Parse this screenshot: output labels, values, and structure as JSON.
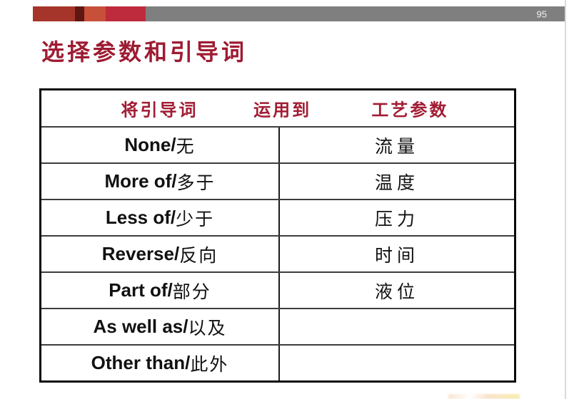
{
  "page": {
    "number": "95"
  },
  "title": "选择参数和引导词",
  "colors": {
    "bar_brick_red": "#a5352a",
    "bar_dark_maroon": "#5e1711",
    "bar_orange_red": "#c7503a",
    "bar_crimson": "#be2b3c",
    "bar_gray": "#7f7f7f",
    "title_crimson": "#9e1b32",
    "table_header_crimson": "#a11c33"
  },
  "table": {
    "headers": [
      "将引导词",
      "运用到",
      "工艺参数"
    ],
    "rows": [
      {
        "guideword_en": "None/",
        "guideword_zh": "无",
        "parameter": "流量"
      },
      {
        "guideword_en": "More of/",
        "guideword_zh": "多于",
        "parameter": "温度"
      },
      {
        "guideword_en": "Less of/",
        "guideword_zh": "少于",
        "parameter": "压力"
      },
      {
        "guideword_en": "Reverse/",
        "guideword_zh": "反向",
        "parameter": "时间"
      },
      {
        "guideword_en": "Part of/",
        "guideword_zh": "部分",
        "parameter": "液位"
      },
      {
        "guideword_en": "As well as/",
        "guideword_zh": "以及",
        "parameter": ""
      },
      {
        "guideword_en": "Other than/",
        "guideword_zh": "此外",
        "parameter": ""
      }
    ]
  }
}
